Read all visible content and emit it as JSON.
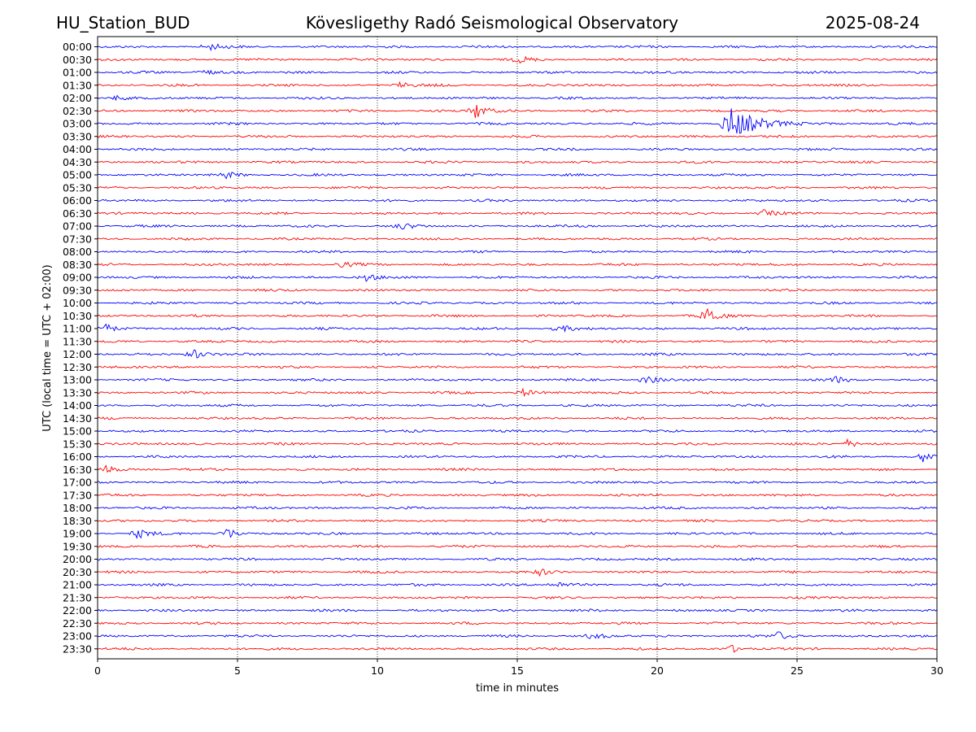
{
  "header": {
    "left": "HU_Station_BUD",
    "center": "Köveslig­ethy Radó Seismological Observatory",
    "right": "2025-08-24"
  },
  "chart_data": {
    "type": "line",
    "title": "Köveslig­ethy Radó Seismological Observatory",
    "xlabel": "time in minutes",
    "ylabel": "UTC (local time = UTC + 02:00)",
    "xlim": [
      0,
      30
    ],
    "x_ticks": [
      0,
      5,
      10,
      15,
      20,
      25,
      30
    ],
    "grid_x": true,
    "row_labels": [
      "00:00",
      "00:30",
      "01:00",
      "01:30",
      "02:00",
      "02:30",
      "03:00",
      "03:30",
      "04:00",
      "04:30",
      "05:00",
      "05:30",
      "06:00",
      "06:30",
      "07:00",
      "07:30",
      "08:00",
      "08:30",
      "09:00",
      "09:30",
      "10:00",
      "10:30",
      "11:00",
      "11:30",
      "12:00",
      "12:30",
      "13:00",
      "13:30",
      "14:00",
      "14:30",
      "15:00",
      "15:30",
      "16:00",
      "16:30",
      "17:00",
      "17:30",
      "18:00",
      "18:30",
      "19:00",
      "19:30",
      "20:00",
      "20:30",
      "21:00",
      "21:30",
      "22:00",
      "22:30",
      "23:00",
      "23:30"
    ],
    "trace_colors": [
      "#0000ff",
      "#ff0000"
    ],
    "events": [
      {
        "row": "00:00",
        "minute": 4.0,
        "amplitude": 0.6
      },
      {
        "row": "00:30",
        "minute": 15.1,
        "amplitude": 0.6
      },
      {
        "row": "01:00",
        "minute": 3.7,
        "amplitude": 0.7
      },
      {
        "row": "01:30",
        "minute": 10.8,
        "amplitude": 0.6
      },
      {
        "row": "02:00",
        "minute": 0.6,
        "amplitude": 0.6
      },
      {
        "row": "02:30",
        "minute": 13.5,
        "amplitude": 1.6
      },
      {
        "row": "03:00",
        "minute": 22.5,
        "amplitude": 3.5
      },
      {
        "row": "05:00",
        "minute": 4.6,
        "amplitude": 0.6
      },
      {
        "row": "06:30",
        "minute": 23.8,
        "amplitude": 0.6
      },
      {
        "row": "07:00",
        "minute": 10.8,
        "amplitude": 0.7
      },
      {
        "row": "08:30",
        "minute": 8.7,
        "amplitude": 0.5
      },
      {
        "row": "09:00",
        "minute": 9.6,
        "amplitude": 0.7
      },
      {
        "row": "10:30",
        "minute": 21.8,
        "amplitude": 1.8
      },
      {
        "row": "11:00",
        "minute": 0.2,
        "amplitude": 1.2
      },
      {
        "row": "11:00",
        "minute": 16.5,
        "amplitude": 0.8
      },
      {
        "row": "12:00",
        "minute": 3.4,
        "amplitude": 1.2
      },
      {
        "row": "13:00",
        "minute": 19.6,
        "amplitude": 0.9
      },
      {
        "row": "13:00",
        "minute": 26.3,
        "amplitude": 0.7
      },
      {
        "row": "13:30",
        "minute": 15.2,
        "amplitude": 0.7
      },
      {
        "row": "15:30",
        "minute": 26.8,
        "amplitude": 0.8
      },
      {
        "row": "16:00",
        "minute": 29.5,
        "amplitude": 1.1
      },
      {
        "row": "16:30",
        "minute": 0.2,
        "amplitude": 1.0
      },
      {
        "row": "19:00",
        "minute": 1.4,
        "amplitude": 1.1
      },
      {
        "row": "19:00",
        "minute": 4.6,
        "amplitude": 1.2
      },
      {
        "row": "20:30",
        "minute": 15.8,
        "amplitude": 0.6
      },
      {
        "row": "21:00",
        "minute": 16.4,
        "amplitude": 0.6
      },
      {
        "row": "23:00",
        "minute": 17.6,
        "amplitude": 0.7
      },
      {
        "row": "23:00",
        "minute": 24.3,
        "amplitude": 0.9
      },
      {
        "row": "23:30",
        "minute": 22.6,
        "amplitude": 0.8
      }
    ]
  }
}
